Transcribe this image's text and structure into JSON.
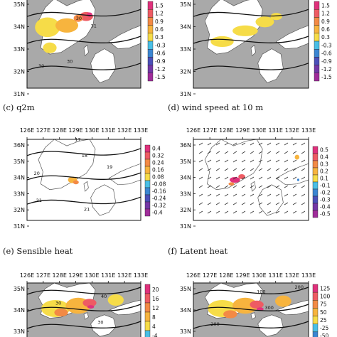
{
  "chart_data": [
    {
      "type": "heatmap",
      "panel_id": "a",
      "title": "",
      "lon_ticks": [],
      "lat_ticks": [
        "35N",
        "34N",
        "33N",
        "32N",
        "31N"
      ],
      "colorbar_labels": [
        "1.5",
        "1.2",
        "0.9",
        "0.6",
        "0.3",
        "-0.3",
        "-0.6",
        "-0.9",
        "-1.2",
        "-1.5"
      ],
      "colorbar_colors": [
        "#e0317c",
        "#ee5b63",
        "#f38a45",
        "#f7b43e",
        "#f6dc48",
        "#49bfe6",
        "#3b86d2",
        "#4b4fb9",
        "#7337a6",
        "#a02c9a"
      ],
      "contour_labels": [
        "30",
        "31",
        "30",
        "30"
      ],
      "masked": true
    },
    {
      "type": "heatmap",
      "panel_id": "b",
      "title": "",
      "lon_ticks": [],
      "lat_ticks": [
        "35N",
        "34N",
        "33N",
        "32N",
        "31N"
      ],
      "colorbar_labels": [
        "1.5",
        "1.2",
        "0.9",
        "0.6",
        "0.3",
        "-0.3",
        "-0.6",
        "-0.9",
        "-1.2",
        "-1.5"
      ],
      "colorbar_colors": [
        "#e0317c",
        "#ee5b63",
        "#f38a45",
        "#f7b43e",
        "#f6dc48",
        "#49bfe6",
        "#3b86d2",
        "#4b4fb9",
        "#7337a6",
        "#a02c9a"
      ],
      "contour_labels": [],
      "masked": true
    },
    {
      "type": "heatmap",
      "panel_id": "c",
      "title": "(c)    q2m",
      "lon_ticks": [
        "126E",
        "127E",
        "128E",
        "129E",
        "130E",
        "131E",
        "132E",
        "133E"
      ],
      "lat_ticks": [
        "36N",
        "35N",
        "34N",
        "33N",
        "32N",
        "31N"
      ],
      "colorbar_labels": [
        "0.4",
        "0.32",
        "0.24",
        "0.16",
        "0.08",
        "-0.08",
        "-0.16",
        "-0.24",
        "-0.32",
        "-0.4"
      ],
      "colorbar_colors": [
        "#e0317c",
        "#ee5b63",
        "#f38a45",
        "#f7b43e",
        "#f6dc48",
        "#49bfe6",
        "#3b86d2",
        "#4b4fb9",
        "#7337a6",
        "#a02c9a"
      ],
      "contour_labels": [
        "17",
        "18",
        "19",
        "20",
        "21",
        "21"
      ],
      "masked": false
    },
    {
      "type": "heatmap",
      "panel_id": "d",
      "title": "(d)    wind speed at 10 m",
      "lon_ticks": [
        "126E",
        "127E",
        "128E",
        "129E",
        "130E",
        "131E",
        "132E",
        "133E"
      ],
      "lat_ticks": [
        "36N",
        "35N",
        "34N",
        "33N",
        "32N",
        "31N"
      ],
      "colorbar_labels": [
        "0.5",
        "0.4",
        "0.3",
        "0.2",
        "0.1",
        "-0.1",
        "-0.2",
        "-0.3",
        "-0.4",
        "-0.5"
      ],
      "colorbar_colors": [
        "#e0317c",
        "#ee5b63",
        "#f38a45",
        "#f7b43e",
        "#f6dc48",
        "#49bfe6",
        "#3b86d2",
        "#4b4fb9",
        "#7337a6",
        "#a02c9a"
      ],
      "contour_labels": [],
      "masked": false
    },
    {
      "type": "heatmap",
      "panel_id": "e",
      "title": "(e)    Sensible heat",
      "lon_ticks": [
        "126E",
        "127E",
        "128E",
        "129E",
        "130E",
        "131E",
        "132E",
        "133E"
      ],
      "lat_ticks": [
        "35N",
        "34N",
        "33N"
      ],
      "colorbar_labels": [
        "20",
        "16",
        "12",
        "8",
        "4",
        "-4"
      ],
      "colorbar_colors": [
        "#e0317c",
        "#ee5b63",
        "#f38a45",
        "#f7b43e",
        "#f6dc48",
        "#49bfe6"
      ],
      "contour_labels": [
        "40",
        "30",
        "30"
      ],
      "masked": true
    },
    {
      "type": "heatmap",
      "panel_id": "f",
      "title": "(f)    Latent heat",
      "lon_ticks": [
        "126E",
        "127E",
        "128E",
        "129E",
        "130E",
        "131E",
        "132E",
        "133E"
      ],
      "lat_ticks": [
        "35N",
        "34N",
        "33N"
      ],
      "colorbar_labels": [
        "125",
        "100",
        "75",
        "50",
        "25",
        "-25",
        "-50"
      ],
      "colorbar_colors": [
        "#e0317c",
        "#ee5b63",
        "#f38a45",
        "#f7b43e",
        "#f6dc48",
        "#49bfe6",
        "#3b86d2"
      ],
      "contour_labels": [
        "100",
        "200",
        "300",
        "200"
      ],
      "masked": true
    }
  ]
}
